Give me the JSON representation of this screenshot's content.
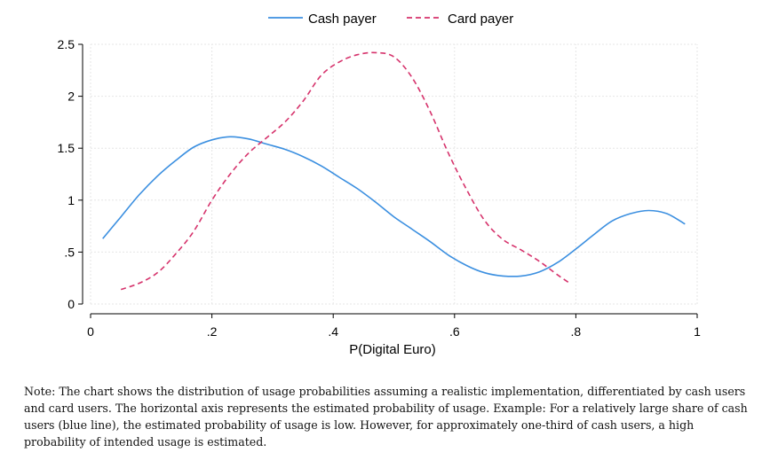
{
  "chart_data": {
    "type": "line",
    "title": "",
    "xlabel": "P(Digital Euro)",
    "ylabel": "",
    "xlim": [
      0,
      1
    ],
    "ylim": [
      0,
      2.5
    ],
    "x_ticks": [
      0,
      0.2,
      0.4,
      0.6,
      0.8,
      1
    ],
    "x_tick_labels": [
      "0",
      ".2",
      ".4",
      ".6",
      ".8",
      "1"
    ],
    "y_ticks": [
      0,
      0.5,
      1,
      1.5,
      2,
      2.5
    ],
    "y_tick_labels": [
      "0",
      ".5",
      "1",
      "1.5",
      "2",
      "2.5"
    ],
    "grid": true,
    "legend_position": "top",
    "series": [
      {
        "name": "Cash payer",
        "color": "#3b8fe0",
        "style": "solid",
        "x": [
          0.02,
          0.05,
          0.08,
          0.11,
          0.14,
          0.17,
          0.2,
          0.23,
          0.26,
          0.29,
          0.32,
          0.35,
          0.38,
          0.41,
          0.44,
          0.47,
          0.5,
          0.53,
          0.56,
          0.59,
          0.62,
          0.65,
          0.68,
          0.71,
          0.74,
          0.77,
          0.8,
          0.83,
          0.86,
          0.89,
          0.92,
          0.95,
          0.98
        ],
        "y": [
          0.63,
          0.84,
          1.05,
          1.23,
          1.38,
          1.51,
          1.58,
          1.61,
          1.59,
          1.54,
          1.49,
          1.42,
          1.33,
          1.22,
          1.11,
          0.98,
          0.84,
          0.72,
          0.6,
          0.47,
          0.37,
          0.3,
          0.27,
          0.27,
          0.31,
          0.4,
          0.53,
          0.67,
          0.8,
          0.87,
          0.9,
          0.87,
          0.77
        ]
      },
      {
        "name": "Card payer",
        "color": "#d6336c",
        "style": "dashed",
        "x": [
          0.05,
          0.08,
          0.11,
          0.14,
          0.17,
          0.2,
          0.23,
          0.26,
          0.29,
          0.32,
          0.35,
          0.38,
          0.41,
          0.44,
          0.47,
          0.5,
          0.53,
          0.56,
          0.59,
          0.62,
          0.65,
          0.68,
          0.71,
          0.74,
          0.77,
          0.79
        ],
        "y": [
          0.14,
          0.2,
          0.3,
          0.48,
          0.7,
          1.0,
          1.25,
          1.45,
          1.6,
          1.75,
          1.95,
          2.2,
          2.33,
          2.4,
          2.42,
          2.38,
          2.18,
          1.85,
          1.45,
          1.1,
          0.8,
          0.62,
          0.52,
          0.41,
          0.28,
          0.2
        ]
      }
    ]
  },
  "note": "Note: The chart shows the distribution of usage probabilities assuming a realistic implementation, differentiated by cash users and card users. The horizontal axis represents the estimated probability of usage. Example: For a relatively large share of cash users (blue line), the estimated probability of usage is low. However, for approximately one-third of cash users, a high probability of intended usage is estimated."
}
